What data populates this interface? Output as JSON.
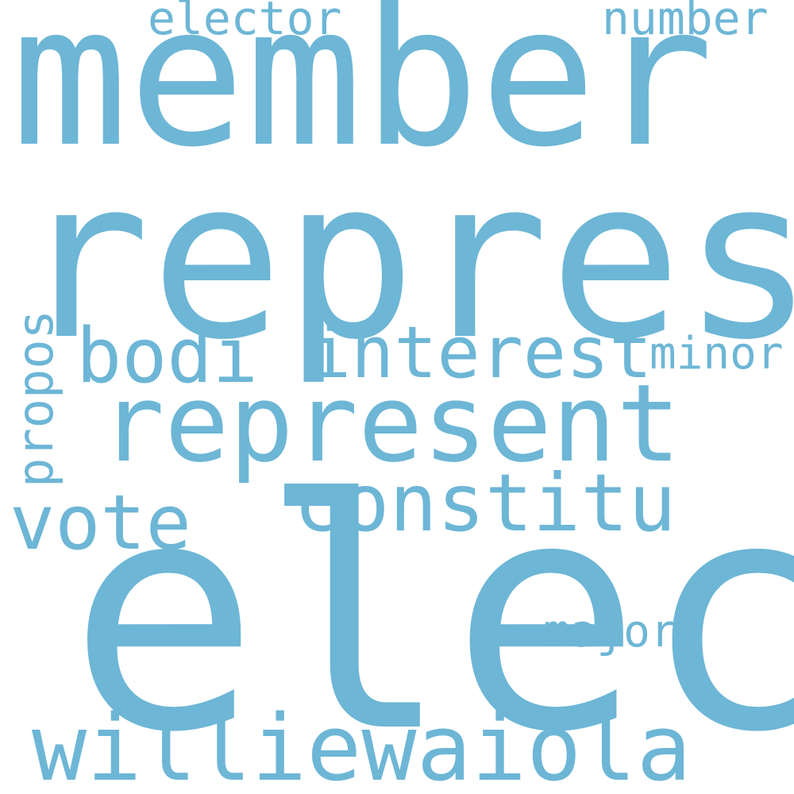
{
  "colors": {
    "word": "#6db6d6",
    "background": "#ffffff"
  },
  "words": {
    "member": "member",
    "repres": "repres",
    "elect": "elect",
    "represent": "represent",
    "interest": "interest",
    "constitu": "constitu",
    "williewaiola": "williewaiola",
    "vote": "vote",
    "bodi": "bodi",
    "minor": "minor",
    "major": "major",
    "elector": "elector",
    "number": "number",
    "propos": "propos"
  }
}
